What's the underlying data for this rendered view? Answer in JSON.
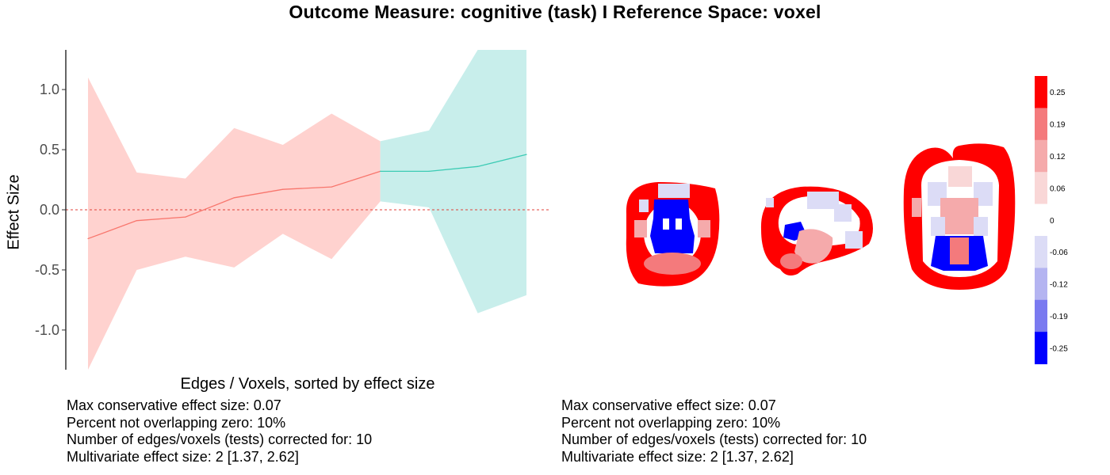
{
  "title": "Outcome Measure: cognitive (task)   I  Reference Space: voxel",
  "chart_data": {
    "type": "line",
    "xlabel": "Edges / Voxels, sorted by effect size",
    "ylabel": "Effect Size",
    "ylim": [
      -1.33,
      1.33
    ],
    "yticks": [
      "1.0",
      "0.5",
      "0.0",
      "-0.5",
      "-1.0"
    ],
    "ytick_values": [
      1.0,
      0.5,
      0.0,
      -0.5,
      -1.0
    ],
    "reference_line": 0.0,
    "x": [
      1,
      2,
      3,
      4,
      5,
      6,
      7,
      8,
      9,
      10
    ],
    "series": [
      {
        "color": "#F8766D",
        "fill": "#FFD2CF",
        "x": [
          1,
          2,
          3,
          4,
          5,
          6,
          7
        ],
        "values": [
          -0.24,
          -0.09,
          -0.06,
          0.1,
          0.17,
          0.19,
          0.32
        ],
        "lower": [
          -1.33,
          -0.5,
          -0.39,
          -0.48,
          -0.2,
          -0.41,
          0.07
        ],
        "upper": [
          1.1,
          0.31,
          0.26,
          0.68,
          0.54,
          0.8,
          0.57
        ]
      },
      {
        "color": "#3CCBB4",
        "fill": "#C8EEEB",
        "x": [
          7,
          8,
          9,
          10
        ],
        "values": [
          0.32,
          0.32,
          0.36,
          0.46
        ],
        "lower": [
          0.07,
          0.02,
          -0.86,
          -0.71
        ],
        "upper": [
          0.57,
          0.66,
          1.33,
          1.33
        ]
      }
    ],
    "colorbar": {
      "labels": [
        "0.25",
        "0.19",
        "0.12",
        "0.06",
        "0",
        "-0.06",
        "-0.12",
        "-0.19",
        "-0.25"
      ],
      "colors": [
        "#FF0000",
        "#F47A7C",
        "#F5AAAB",
        "#F9D7D7",
        "#FFFFFF",
        "#DCDCF6",
        "#B4B4F1",
        "#7A7AF0",
        "#0000FF"
      ]
    }
  },
  "stats_left": {
    "line1": "Max conservative effect size: 0.07",
    "line2": "Percent not overlapping zero: 10%",
    "line3": "Number of edges/voxels (tests) corrected for: 10",
    "line4": "Multivariate effect size: 2 [1.37, 2.62]"
  },
  "stats_right": {
    "line1": "Max conservative effect size: 0.07",
    "line2": "Percent not overlapping zero: 10%",
    "line3": "Number of edges/voxels (tests) corrected for: 10",
    "line4": "Multivariate effect size: 2 [1.37, 2.62]"
  },
  "brain_views": [
    "coronal",
    "sagittal",
    "axial"
  ]
}
